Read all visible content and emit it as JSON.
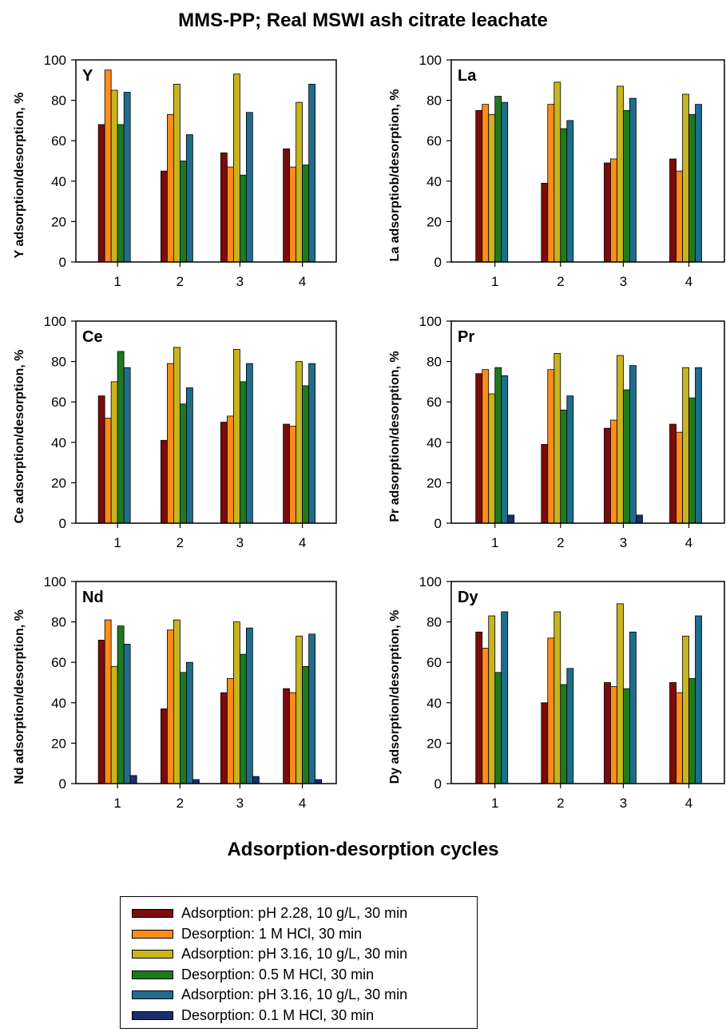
{
  "title": "MMS-PP; Real MSWI ash citrate leachate",
  "xlabel": "Adsorption-desorption cycles",
  "series": [
    {
      "name": "Adsorption: pH 2.28, 10 g/L, 30 min",
      "color": "#7a0c0c"
    },
    {
      "name": "Desorption: 1 M HCl, 30 min",
      "color": "#ff8c1a"
    },
    {
      "name": "Adsorption: pH 3.16, 10 g/L, 30 min",
      "color": "#c8b41e"
    },
    {
      "name": "Desorption: 0.5 M HCl, 30 min",
      "color": "#1e7a1e"
    },
    {
      "name": "Adsorption: pH 3.16, 10 g/L, 30 min",
      "color": "#1f6d8c"
    },
    {
      "name": "Desorption: 0.1 M HCl, 30 min",
      "color": "#1a2f6e"
    }
  ],
  "chart_data": [
    {
      "type": "bar",
      "label": "Y",
      "ylabel": "Y adsorption/desorption, %",
      "ylim": [
        0,
        100
      ],
      "yticks": [
        0,
        20,
        40,
        60,
        80,
        100
      ],
      "categories": [
        "1",
        "2",
        "3",
        "4"
      ],
      "series": [
        {
          "name": "Adsorption: pH 2.28, 10 g/L, 30 min",
          "values": [
            68,
            45,
            54,
            56
          ]
        },
        {
          "name": "Desorption: 1 M HCl, 30 min",
          "values": [
            95,
            73,
            47,
            47
          ]
        },
        {
          "name": "Adsorption: pH 3.16, 10 g/L, 30 min",
          "values": [
            85,
            88,
            93,
            79
          ]
        },
        {
          "name": "Desorption: 0.5 M HCl, 30 min",
          "values": [
            68,
            50,
            43,
            48
          ]
        },
        {
          "name": "Adsorption: pH 3.16, 10 g/L, 30 min",
          "values": [
            84,
            63,
            74,
            88
          ]
        },
        {
          "name": "Desorption: 0.1 M HCl, 30 min",
          "values": [
            0,
            0,
            0,
            0
          ]
        }
      ]
    },
    {
      "type": "bar",
      "label": "La",
      "ylabel": "La adsorptiob/desorption, %",
      "ylim": [
        0,
        100
      ],
      "yticks": [
        0,
        20,
        40,
        60,
        80,
        100
      ],
      "categories": [
        "1",
        "2",
        "3",
        "4"
      ],
      "series": [
        {
          "name": "Adsorption: pH 2.28, 10 g/L, 30 min",
          "values": [
            75,
            39,
            49,
            51
          ]
        },
        {
          "name": "Desorption: 1 M HCl, 30 min",
          "values": [
            78,
            78,
            51,
            45
          ]
        },
        {
          "name": "Adsorption: pH 3.16, 10 g/L, 30 min",
          "values": [
            73,
            89,
            87,
            83
          ]
        },
        {
          "name": "Desorption: 0.5 M HCl, 30 min",
          "values": [
            82,
            66,
            75,
            73
          ]
        },
        {
          "name": "Adsorption: pH 3.16, 10 g/L, 30 min",
          "values": [
            79,
            70,
            81,
            78
          ]
        },
        {
          "name": "Desorption: 0.1 M HCl, 30 min",
          "values": [
            0,
            0,
            0,
            0
          ]
        }
      ]
    },
    {
      "type": "bar",
      "label": "Ce",
      "ylabel": "Ce adsorption/desorption, %",
      "ylim": [
        0,
        100
      ],
      "yticks": [
        0,
        20,
        40,
        60,
        80,
        100
      ],
      "categories": [
        "1",
        "2",
        "3",
        "4"
      ],
      "series": [
        {
          "name": "Adsorption: pH 2.28, 10 g/L, 30 min",
          "values": [
            63,
            41,
            50,
            49
          ]
        },
        {
          "name": "Desorption: 1 M HCl, 30 min",
          "values": [
            52,
            79,
            53,
            48
          ]
        },
        {
          "name": "Adsorption: pH 3.16, 10 g/L, 30 min",
          "values": [
            70,
            87,
            86,
            80
          ]
        },
        {
          "name": "Desorption: 0.5 M HCl, 30 min",
          "values": [
            85,
            59,
            70,
            68
          ]
        },
        {
          "name": "Adsorption: pH 3.16, 10 g/L, 30 min",
          "values": [
            77,
            67,
            79,
            79
          ]
        },
        {
          "name": "Desorption: 0.1 M HCl, 30 min",
          "values": [
            0,
            0,
            0,
            0
          ]
        }
      ]
    },
    {
      "type": "bar",
      "label": "Pr",
      "ylabel": "Pr adsorption/desorption, %",
      "ylim": [
        0,
        100
      ],
      "yticks": [
        0,
        20,
        40,
        60,
        80,
        100
      ],
      "categories": [
        "1",
        "2",
        "3",
        "4"
      ],
      "series": [
        {
          "name": "Adsorption: pH 2.28, 10 g/L, 30 min",
          "values": [
            74,
            39,
            47,
            49
          ]
        },
        {
          "name": "Desorption: 1 M HCl, 30 min",
          "values": [
            76,
            76,
            51,
            45
          ]
        },
        {
          "name": "Adsorption: pH 3.16, 10 g/L, 30 min",
          "values": [
            64,
            84,
            83,
            77
          ]
        },
        {
          "name": "Desorption: 0.5 M HCl, 30 min",
          "values": [
            77,
            56,
            66,
            62
          ]
        },
        {
          "name": "Adsorption: pH 3.16, 10 g/L, 30 min",
          "values": [
            73,
            63,
            78,
            77
          ]
        },
        {
          "name": "Desorption: 0.1 M HCl, 30 min",
          "values": [
            4,
            0,
            4,
            0
          ]
        }
      ]
    },
    {
      "type": "bar",
      "label": "Nd",
      "ylabel": "Nd adsorption/desorption, %",
      "ylim": [
        0,
        100
      ],
      "yticks": [
        0,
        20,
        40,
        60,
        80,
        100
      ],
      "categories": [
        "1",
        "2",
        "3",
        "4"
      ],
      "series": [
        {
          "name": "Adsorption: pH 2.28, 10 g/L, 30 min",
          "values": [
            71,
            37,
            45,
            47
          ]
        },
        {
          "name": "Desorption: 1 M HCl, 30 min",
          "values": [
            81,
            76,
            52,
            45
          ]
        },
        {
          "name": "Adsorption: pH 3.16, 10 g/L, 30 min",
          "values": [
            58,
            81,
            80,
            73
          ]
        },
        {
          "name": "Desorption: 0.5 M HCl, 30 min",
          "values": [
            78,
            55,
            64,
            58
          ]
        },
        {
          "name": "Adsorption: pH 3.16, 10 g/L, 30 min",
          "values": [
            69,
            60,
            77,
            74
          ]
        },
        {
          "name": "Desorption: 0.1 M HCl, 30 min",
          "values": [
            4,
            2,
            3.5,
            2
          ]
        }
      ]
    },
    {
      "type": "bar",
      "label": "Dy",
      "ylabel": "Dy adsorption/desorption, %",
      "ylim": [
        0,
        100
      ],
      "yticks": [
        0,
        20,
        40,
        60,
        80,
        100
      ],
      "categories": [
        "1",
        "2",
        "3",
        "4"
      ],
      "series": [
        {
          "name": "Adsorption: pH 2.28, 10 g/L, 30 min",
          "values": [
            75,
            40,
            50,
            50
          ]
        },
        {
          "name": "Desorption: 1 M HCl, 30 min",
          "values": [
            67,
            72,
            48,
            45
          ]
        },
        {
          "name": "Adsorption: pH 3.16, 10 g/L, 30 min",
          "values": [
            83,
            85,
            89,
            73
          ]
        },
        {
          "name": "Desorption: 0.5 M HCl, 30 min",
          "values": [
            55,
            49,
            47,
            52
          ]
        },
        {
          "name": "Adsorption: pH 3.16, 10 g/L, 30 min",
          "values": [
            85,
            57,
            75,
            83
          ]
        },
        {
          "name": "Desorption: 0.1 M HCl, 30 min",
          "values": [
            0,
            0,
            0,
            0
          ]
        }
      ]
    }
  ]
}
